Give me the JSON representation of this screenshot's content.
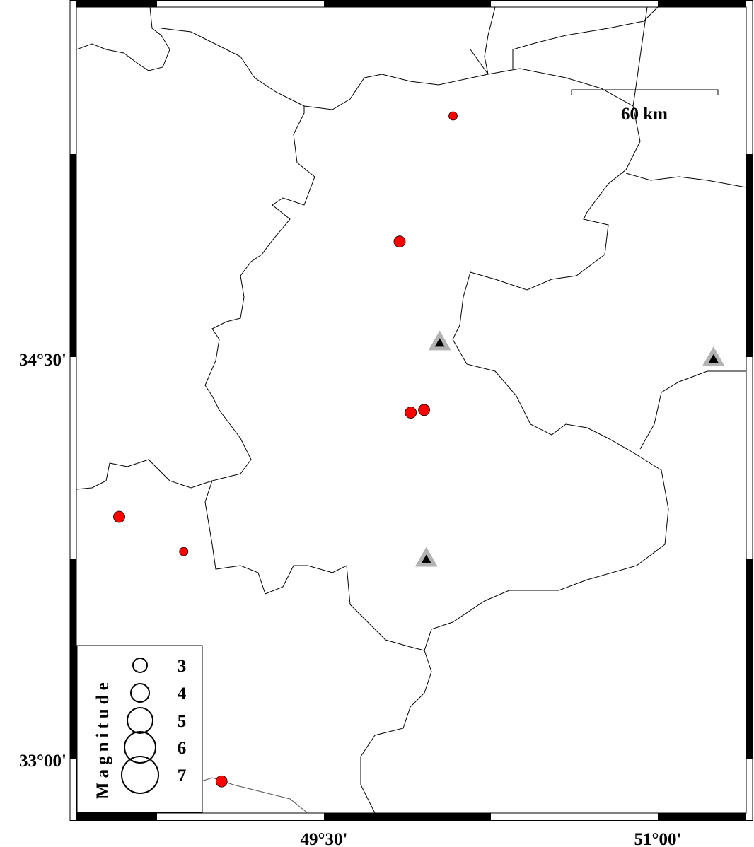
{
  "map": {
    "region": {
      "lon_min": 48.5,
      "lon_max": 51.5,
      "lat_min": 32.8,
      "lat_max": 35.8
    },
    "axis_labels": {
      "left": [
        "34°30'",
        "33°00'"
      ],
      "bottom": [
        "49°30'",
        "51°00'"
      ]
    },
    "scale_bar": {
      "label": "60 km"
    },
    "legend": {
      "title": "Magnitude",
      "entries": [
        "3",
        "4",
        "5",
        "6",
        "7"
      ]
    },
    "colors": {
      "event": "#ff0000",
      "station_outer": "#b3b3b3",
      "station_inner": "#000000",
      "border": "#000000"
    },
    "events": [
      {
        "lon": 50.08,
        "lat": 35.41,
        "mag": 3
      },
      {
        "lon": 49.84,
        "lat": 34.94,
        "mag": 4
      },
      {
        "lon": 49.89,
        "lat": 34.3,
        "mag": 4
      },
      {
        "lon": 49.95,
        "lat": 34.31,
        "mag": 4
      },
      {
        "lon": 48.58,
        "lat": 33.91,
        "mag": 4
      },
      {
        "lon": 48.87,
        "lat": 33.78,
        "mag": 3
      },
      {
        "lon": 49.04,
        "lat": 32.92,
        "mag": 4
      }
    ],
    "stations": [
      {
        "lon": 50.02,
        "lat": 34.56
      },
      {
        "lon": 51.25,
        "lat": 34.5
      },
      {
        "lon": 49.96,
        "lat": 33.75
      }
    ]
  }
}
